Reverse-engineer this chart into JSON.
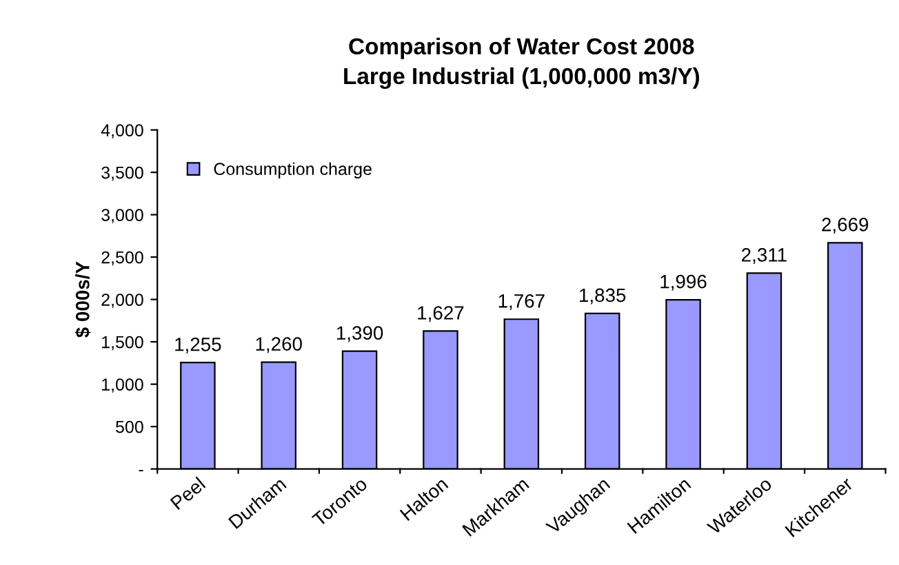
{
  "chart_data": {
    "type": "bar",
    "title": "Comparison of Water Cost 2008\nLarge Industrial (1,000,000 m3/Y)",
    "ylabel": "$ 000s/Y",
    "categories": [
      "Peel",
      "Durham",
      "Toronto",
      "Halton",
      "Markham",
      "Vaughan",
      "Hamilton",
      "Waterloo",
      "Kitchener"
    ],
    "series": [
      {
        "name": "Consumption charge",
        "color": "#9999ff",
        "values": [
          1255,
          1260,
          1390,
          1627,
          1767,
          1835,
          1996,
          2311,
          2669
        ]
      }
    ],
    "value_labels": [
      "1,255",
      "1,260",
      "1,390",
      "1,627",
      "1,767",
      "1,835",
      "1,996",
      "2,311",
      "2,669"
    ],
    "ylim": [
      0,
      4000
    ],
    "yticks": [
      {
        "value": 0,
        "label": "-"
      },
      {
        "value": 500,
        "label": "500"
      },
      {
        "value": 1000,
        "label": "1,000"
      },
      {
        "value": 1500,
        "label": "1,500"
      },
      {
        "value": 2000,
        "label": "2,000"
      },
      {
        "value": 2500,
        "label": "2,500"
      },
      {
        "value": 3000,
        "label": "3,000"
      },
      {
        "value": 3500,
        "label": "3,500"
      },
      {
        "value": 4000,
        "label": "4,000"
      }
    ],
    "grid": false,
    "legend": "upper left"
  }
}
